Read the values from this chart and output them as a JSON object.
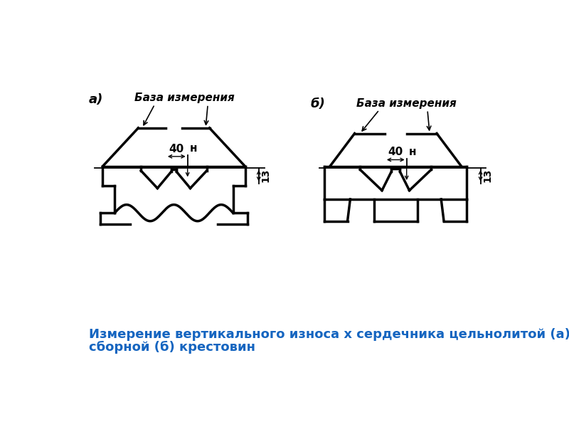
{
  "caption_line1": "Измерение вертикального износа х сердечника цельнолитой (а) и",
  "caption_line2": "сборной (б) крестовин",
  "caption_color": "#1565C0",
  "caption_fontsize": 13,
  "bg_color": "#ffffff",
  "label_a": "а)",
  "label_b": "б)",
  "label_baza": "База измерения",
  "label_40": "40",
  "label_h": "н",
  "label_13": "13",
  "lw_heavy": 2.5,
  "lw_thin": 1.3
}
